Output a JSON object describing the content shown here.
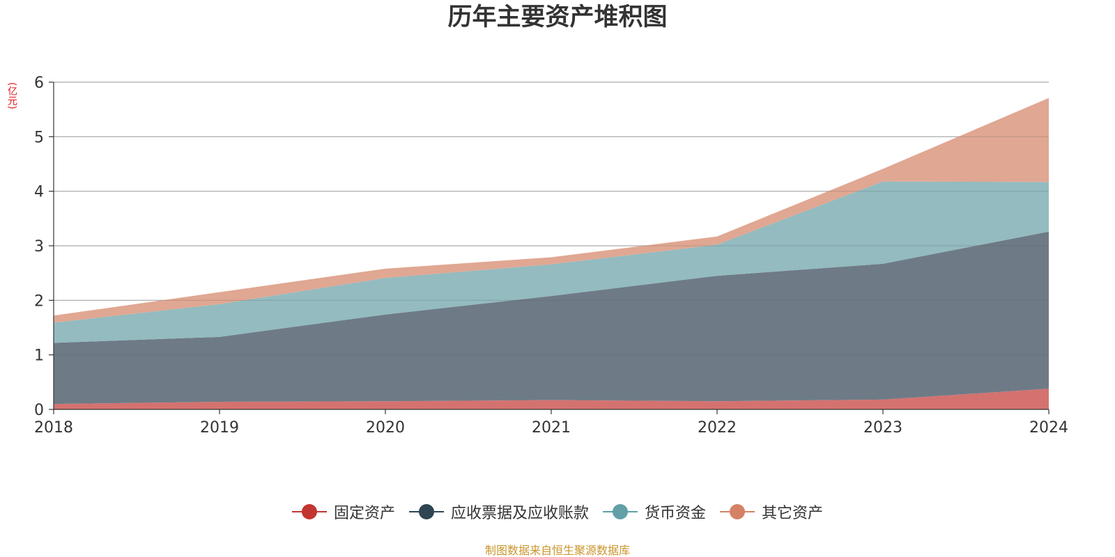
{
  "chart_data": {
    "type": "area",
    "stacked": true,
    "title": "历年主要资产堆积图",
    "unit": "(亿元)",
    "xlabel": "",
    "ylabel": "",
    "x": [
      "2018",
      "2019",
      "2020",
      "2021",
      "2022",
      "2023",
      "2024"
    ],
    "ylim": [
      0,
      6
    ],
    "yticks": [
      0,
      1,
      2,
      3,
      4,
      5,
      6
    ],
    "grid": true,
    "legend_position": "bottom",
    "series": [
      {
        "name": "固定资产",
        "color": "#c23531",
        "fill": "#d47270",
        "values": [
          0.1,
          0.14,
          0.15,
          0.17,
          0.15,
          0.18,
          0.38
        ]
      },
      {
        "name": "应收票据及应收账款",
        "color": "#2f4554",
        "fill": "#6e7b86",
        "values": [
          1.12,
          1.19,
          1.59,
          1.91,
          2.3,
          2.49,
          2.88
        ]
      },
      {
        "name": "货币资金",
        "color": "#61a0a8",
        "fill": "#93bbc0",
        "values": [
          0.37,
          0.6,
          0.67,
          0.58,
          0.57,
          1.51,
          0.91
        ]
      },
      {
        "name": "其它资产",
        "color": "#d48265",
        "fill": "#e0a792",
        "values": [
          0.13,
          0.22,
          0.17,
          0.13,
          0.15,
          0.23,
          1.54
        ]
      }
    ]
  },
  "source_note": "制图数据来自恒生聚源数据库"
}
